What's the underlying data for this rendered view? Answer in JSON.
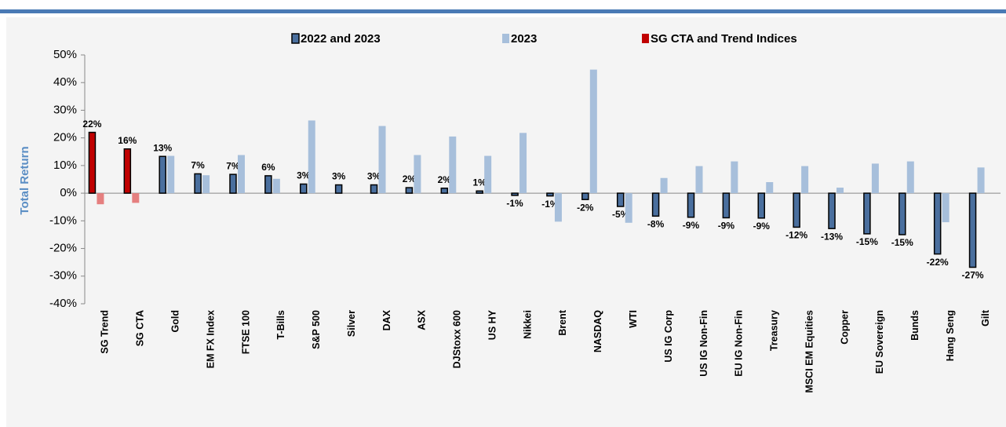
{
  "chart_data": {
    "type": "bar",
    "y_label": "Total Return",
    "categories": [
      "SG Trend",
      "SG CTA",
      "Gold",
      "EM FX Index",
      "FTSE 100",
      "T-Bills",
      "S&P 500",
      "Silver",
      "DAX",
      "ASX",
      "DJStoxx 600",
      "US HY",
      "Nikkei",
      "Brent",
      "NASDAQ",
      "WTI",
      "US IG Corp",
      "US IG Non-Fin",
      "EU IG Non-Fin",
      "Treasury",
      "MSCI EM Equities",
      "Copper",
      "EU Sovereign",
      "Bunds",
      "Hang Seng",
      "Gilt"
    ],
    "series": [
      {
        "name": "2022 and 2023",
        "color": "#4a6f9e",
        "values": [
          null,
          null,
          13.3,
          7,
          6.8,
          6.3,
          3.3,
          3,
          3,
          2,
          1.8,
          0.8,
          -0.8,
          -1,
          -2.3,
          -4.8,
          -8.3,
          -8.7,
          -8.9,
          -9,
          -12.3,
          -12.8,
          -14.7,
          -15,
          -22,
          -26.8
        ],
        "value_labels": [
          null,
          null,
          "13%",
          "7%",
          "7%",
          "6%",
          "3%",
          "3%",
          "3%",
          "2%",
          "2%",
          "1%",
          "-1%",
          "-1%",
          "-2%",
          "-5%",
          "-8%",
          "-9%",
          "-9%",
          "-9%",
          "-12%",
          "-13%",
          "-15%",
          "-15%",
          "-22%",
          "-27%"
        ]
      },
      {
        "name": "2023",
        "color": "#a7bfdb",
        "highlight_color": "#e57f7f",
        "values": [
          -4,
          -3.5,
          13.5,
          6.5,
          13.8,
          5.2,
          26.3,
          0,
          24.3,
          13.8,
          20.5,
          13.5,
          21.8,
          -10.3,
          44.7,
          -10.7,
          5.5,
          9.8,
          11.5,
          4,
          9.8,
          2,
          10.7,
          11.5,
          -10.5,
          9.3
        ]
      },
      {
        "name": "SG CTA and Trend Indices",
        "color": "#c00000",
        "values": [
          22,
          16,
          null,
          null,
          null,
          null,
          null,
          null,
          null,
          null,
          null,
          null,
          null,
          null,
          null,
          null,
          null,
          null,
          null,
          null,
          null,
          null,
          null,
          null,
          null,
          null
        ],
        "value_labels": [
          "22%",
          "16%",
          null,
          null,
          null,
          null,
          null,
          null,
          null,
          null,
          null,
          null,
          null,
          null,
          null,
          null,
          null,
          null,
          null,
          null,
          null,
          null,
          null,
          null,
          null,
          null
        ]
      }
    ],
    "ylim": [
      -40,
      50
    ],
    "yticks": [
      {
        "value": -40,
        "label": "-40%"
      },
      {
        "value": -30,
        "label": "-30%"
      },
      {
        "value": -20,
        "label": "-20%"
      },
      {
        "value": -10,
        "label": "-10%"
      },
      {
        "value": 0,
        "label": "0%"
      },
      {
        "value": 10,
        "label": "10%"
      },
      {
        "value": 20,
        "label": "20%"
      },
      {
        "value": 30,
        "label": "30%"
      },
      {
        "value": 40,
        "label": "40%"
      },
      {
        "value": 50,
        "label": "50%"
      }
    ],
    "grid": false
  }
}
